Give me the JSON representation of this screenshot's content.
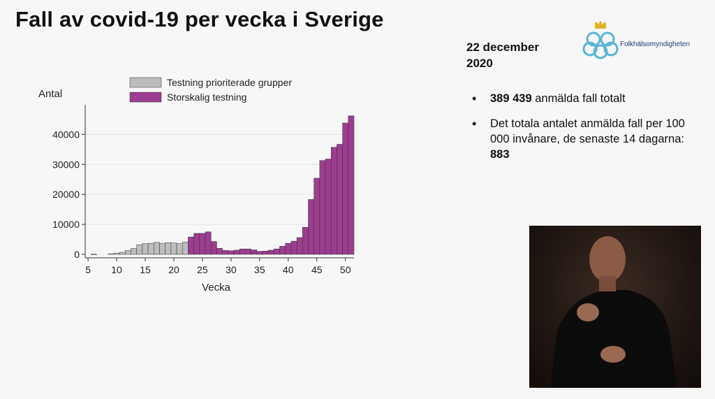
{
  "header": {
    "title": "Fall av covid-19 per vecka i Sverige"
  },
  "sidebar": {
    "date": [
      "22 december",
      "2020"
    ],
    "logo_text": "Folkhälsomyndigheten",
    "bullet1": {
      "value": "389 439",
      "text": " anmälda fall totalt"
    },
    "bullet2": {
      "text_a": "Det totala antalet anmälda fall per 100 000 invånare, de senaste 14 dagarna: ",
      "value": "883"
    }
  },
  "chart_data": {
    "type": "bar",
    "ylabel": "Antal",
    "xlabel": "Vecka",
    "xlim": [
      4.5,
      51.5
    ],
    "ylim": [
      0,
      48000
    ],
    "xticks": [
      5,
      10,
      15,
      20,
      25,
      30,
      35,
      40,
      45,
      50
    ],
    "yticks": [
      0,
      10000,
      20000,
      30000,
      40000
    ],
    "legend_position": "top",
    "colors": {
      "Testning prioriterade grupper": "#bdbdbd",
      "Storskalig testning": "#9c3d8f",
      "edge": "#333333"
    },
    "series": [
      {
        "name": "Testning prioriterade grupper",
        "x": [
          6,
          9,
          10,
          11,
          12,
          13,
          14,
          15,
          16,
          17,
          18,
          19,
          20,
          21,
          22
        ],
        "values": [
          50,
          200,
          400,
          700,
          1300,
          2000,
          3200,
          3600,
          3700,
          4000,
          3700,
          3900,
          3800,
          3600,
          4100
        ]
      },
      {
        "name": "Storskalig testning",
        "x": [
          23,
          24,
          25,
          26,
          27,
          28,
          29,
          30,
          31,
          32,
          33,
          34,
          35,
          36,
          37,
          38,
          39,
          40,
          41,
          42,
          43,
          44,
          45,
          46,
          47,
          48,
          49,
          50,
          51
        ],
        "values": [
          5800,
          7000,
          7000,
          7500,
          4300,
          2000,
          1300,
          1200,
          1400,
          1800,
          1800,
          1500,
          1000,
          1100,
          1400,
          1800,
          2700,
          3700,
          4400,
          5600,
          9000,
          18300,
          25400,
          31300,
          31800,
          35700,
          36700,
          43800,
          46200
        ]
      }
    ]
  }
}
